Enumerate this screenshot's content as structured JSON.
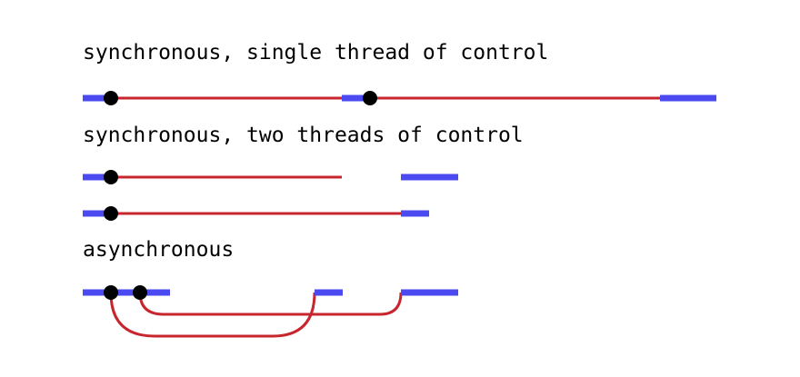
{
  "sections": [
    {
      "id": "sync-single",
      "heading": "synchronous, single thread of control"
    },
    {
      "id": "sync-two",
      "heading": "synchronous, two threads of control"
    },
    {
      "id": "async",
      "heading": "asynchronous"
    }
  ],
  "colors": {
    "cpu_segment": "#4a4af0",
    "wait_line": "#c8262e",
    "event_dot": "#000000",
    "background": "#ffffff",
    "text": "#000000"
  }
}
